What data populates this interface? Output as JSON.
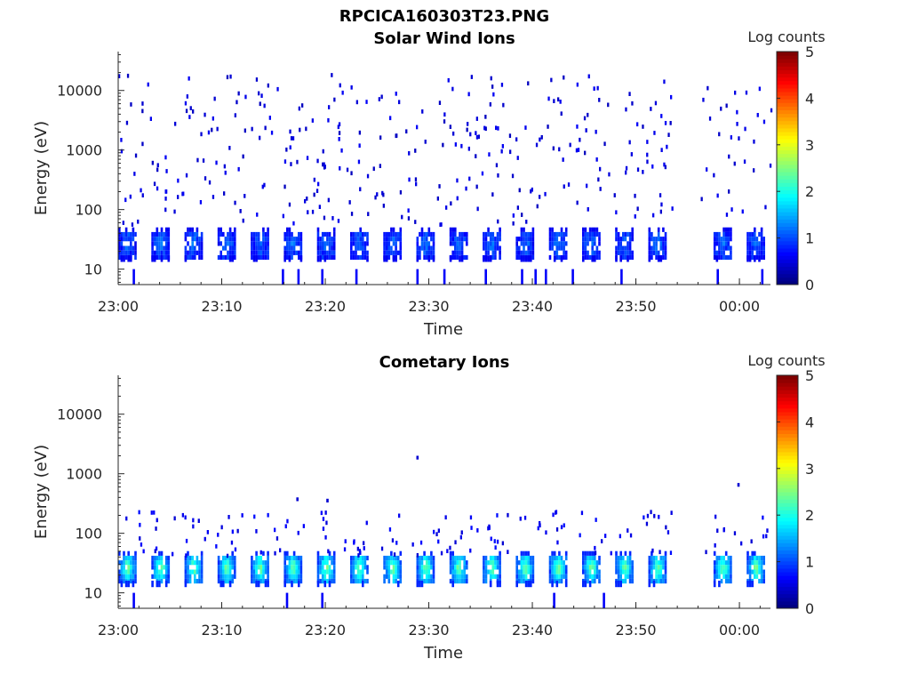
{
  "figure": {
    "title": "RPCICA160303T23.PNG"
  },
  "chart_data": [
    {
      "type": "heatmap",
      "title": "Solar Wind Ions",
      "xlabel": "Time",
      "ylabel": "Energy (eV)",
      "x_tick_labels": [
        "23:00",
        "23:10",
        "23:20",
        "23:30",
        "23:40",
        "23:50",
        "00:00"
      ],
      "x_tick_minutes": [
        0,
        10,
        20,
        30,
        40,
        50,
        60
      ],
      "xlim_minutes": [
        0,
        63
      ],
      "y_scale": "log",
      "y_tick_labels": [
        "10",
        "100",
        "1000",
        "10000"
      ],
      "y_tick_values": [
        10,
        100,
        1000,
        10000
      ],
      "ylim": [
        5.5,
        45000
      ],
      "colorbar": {
        "label": "Log counts",
        "range": [
          0,
          5
        ],
        "tick_labels": [
          "0",
          "1",
          "2",
          "3",
          "4",
          "5"
        ],
        "colormap": "jet"
      },
      "data_gap_minutes": [
        53.5,
        56.2
      ],
      "bursts": {
        "start_minutes": [
          0,
          3.2,
          6.4,
          9.6,
          12.8,
          16.0,
          19.2,
          22.4,
          25.6,
          28.8,
          32.0,
          35.2,
          38.4,
          41.6,
          44.8,
          48.0,
          51.2,
          57.5,
          60.7
        ],
        "duration_minutes": 1.6,
        "energy_band_eV": [
          17,
          42
        ],
        "peak_log_counts": 1.2,
        "edge_log_counts": 0.7
      },
      "low_energy_streaks": {
        "minutes": [
          1.4,
          15.8,
          17.3,
          19.6,
          22.9,
          28.8,
          31.4,
          35.4,
          38.9,
          40.2,
          41.2,
          43.8,
          48.5,
          57.8,
          62.1
        ],
        "energy_range_eV": [
          5.5,
          10
        ],
        "log_counts": 0.6
      },
      "sparse_background": {
        "energy_range_eV": [
          60,
          20000
        ],
        "approx_event_count": 380,
        "log_counts": 0.3
      }
    },
    {
      "type": "heatmap",
      "title": "Cometary Ions",
      "xlabel": "Time",
      "ylabel": "Energy (eV)",
      "x_tick_labels": [
        "23:00",
        "23:10",
        "23:20",
        "23:30",
        "23:40",
        "23:50",
        "00:00"
      ],
      "x_tick_minutes": [
        0,
        10,
        20,
        30,
        40,
        50,
        60
      ],
      "xlim_minutes": [
        0,
        63
      ],
      "y_scale": "log",
      "y_tick_labels": [
        "10",
        "100",
        "1000",
        "10000"
      ],
      "y_tick_values": [
        10,
        100,
        1000,
        10000
      ],
      "ylim": [
        5.5,
        45000
      ],
      "colorbar": {
        "label": "Log counts",
        "range": [
          0,
          5
        ],
        "tick_labels": [
          "0",
          "1",
          "2",
          "3",
          "4",
          "5"
        ],
        "colormap": "jet"
      },
      "data_gap_minutes": [
        53.5,
        56.2
      ],
      "bursts": {
        "start_minutes": [
          0,
          3.2,
          6.4,
          9.6,
          12.8,
          16.0,
          19.2,
          22.4,
          25.6,
          28.8,
          32.0,
          35.2,
          38.4,
          41.6,
          44.8,
          48.0,
          51.2,
          57.5,
          60.7
        ],
        "duration_minutes": 1.6,
        "energy_band_eV": [
          16,
          42
        ],
        "peak_log_counts": 2.6,
        "edge_log_counts": 1.0
      },
      "low_energy_streaks": {
        "minutes": [
          1.4,
          16.2,
          19.6,
          42.0,
          46.8
        ],
        "energy_range_eV": [
          5.5,
          10
        ],
        "log_counts": 0.6
      },
      "sparse_background": {
        "energy_range_eV": [
          45,
          250
        ],
        "approx_event_count": 150,
        "log_counts": 0.4
      },
      "isolated_points": [
        {
          "minute": 28.8,
          "energy_eV": 2000
        },
        {
          "minute": 17.2,
          "energy_eV": 400
        },
        {
          "minute": 20.1,
          "energy_eV": 380
        },
        {
          "minute": 59.8,
          "energy_eV": 700
        }
      ]
    }
  ]
}
